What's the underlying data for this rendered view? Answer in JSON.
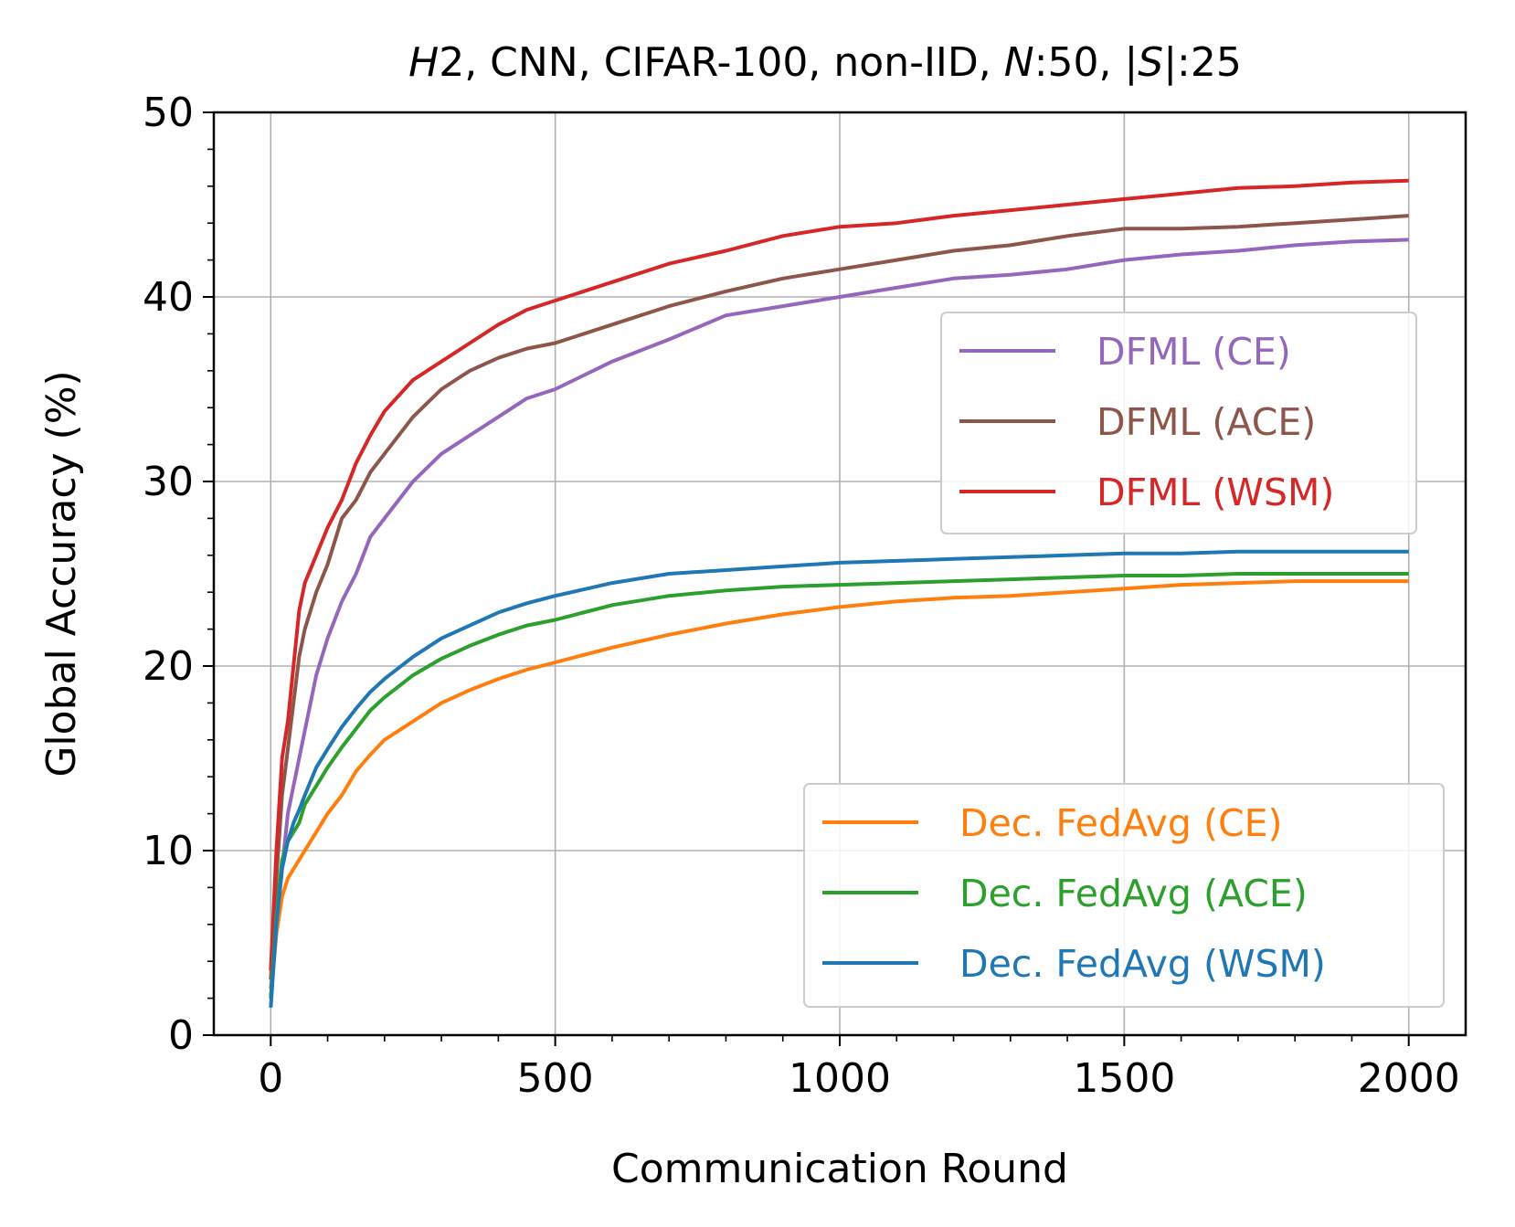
{
  "chart_data": {
    "type": "line",
    "title": {
      "prefix": "H",
      "parts": [
        {
          "text": "H",
          "italic": true
        },
        {
          "text": "2, CNN, CIFAR-100, non-IID, ",
          "italic": false
        },
        {
          "text": "N",
          "italic": true
        },
        {
          "text": ":50, |",
          "italic": false
        },
        {
          "text": "S",
          "italic": true
        },
        {
          "text": "|:25",
          "italic": false
        }
      ]
    },
    "xlabel": "Communication Round",
    "ylabel": "Global Accuracy (%)",
    "xlim": [
      -100,
      2100
    ],
    "ylim": [
      0,
      50
    ],
    "xticks": [
      0,
      500,
      1000,
      1500,
      2000
    ],
    "yticks": [
      0,
      10,
      20,
      30,
      40,
      50
    ],
    "grid": true,
    "x": [
      0,
      10,
      20,
      30,
      40,
      50,
      60,
      80,
      100,
      125,
      150,
      175,
      200,
      250,
      300,
      350,
      400,
      450,
      500,
      600,
      700,
      800,
      900,
      1000,
      1100,
      1200,
      1300,
      1400,
      1500,
      1600,
      1700,
      1800,
      1900,
      2000
    ],
    "series": [
      {
        "name": "DFML (CE)",
        "color": "#9467bd",
        "legend": "upper",
        "values": [
          2.5,
          6,
          9,
          12,
          13.5,
          15,
          16.5,
          19.5,
          21.5,
          23.5,
          25,
          27,
          28,
          30,
          31.5,
          32.5,
          33.5,
          34.5,
          35,
          36.5,
          37.7,
          39,
          39.5,
          40,
          40.5,
          41,
          41.2,
          41.5,
          42,
          42.3,
          42.5,
          42.8,
          43,
          43.1
        ]
      },
      {
        "name": "DFML (ACE)",
        "color": "#8c564b",
        "legend": "upper",
        "values": [
          3,
          8.5,
          13,
          15.5,
          18,
          20.5,
          22,
          24,
          25.5,
          28,
          29,
          30.5,
          31.5,
          33.5,
          35,
          36,
          36.7,
          37.2,
          37.5,
          38.5,
          39.5,
          40.3,
          41,
          41.5,
          42,
          42.5,
          42.8,
          43.3,
          43.7,
          43.7,
          43.8,
          44,
          44.2,
          44.4
        ]
      },
      {
        "name": "DFML (WSM)",
        "color": "#d62728",
        "legend": "upper",
        "values": [
          3.5,
          10,
          15,
          17,
          20,
          23,
          24.5,
          26,
          27.5,
          29,
          31,
          32.5,
          33.8,
          35.5,
          36.5,
          37.5,
          38.5,
          39.3,
          39.8,
          40.8,
          41.8,
          42.5,
          43.3,
          43.8,
          44,
          44.4,
          44.7,
          45,
          45.3,
          45.6,
          45.9,
          46,
          46.2,
          46.3
        ]
      },
      {
        "name": "Dec. FedAvg (CE)",
        "color": "#ff7f0e",
        "legend": "lower",
        "values": [
          2,
          5.5,
          7.5,
          8.5,
          9,
          9.5,
          10,
          11,
          12,
          13,
          14.3,
          15.2,
          16,
          17,
          18,
          18.7,
          19.3,
          19.8,
          20.2,
          21,
          21.7,
          22.3,
          22.8,
          23.2,
          23.5,
          23.7,
          23.8,
          24,
          24.2,
          24.4,
          24.5,
          24.6,
          24.6,
          24.6
        ]
      },
      {
        "name": "Dec. FedAvg (ACE)",
        "color": "#2ca02c",
        "legend": "lower",
        "values": [
          2,
          6.5,
          9.5,
          10.5,
          11,
          11.5,
          12.5,
          13.5,
          14.5,
          15.6,
          16.6,
          17.6,
          18.3,
          19.5,
          20.4,
          21.1,
          21.7,
          22.2,
          22.5,
          23.3,
          23.8,
          24.1,
          24.3,
          24.4,
          24.5,
          24.6,
          24.7,
          24.8,
          24.9,
          24.9,
          25,
          25,
          25,
          25
        ]
      },
      {
        "name": "Dec. FedAvg (WSM)",
        "color": "#1f77b4",
        "legend": "lower",
        "values": [
          1.5,
          6,
          9,
          10.5,
          11.5,
          12.2,
          13,
          14.5,
          15.5,
          16.7,
          17.7,
          18.6,
          19.3,
          20.5,
          21.5,
          22.2,
          22.9,
          23.4,
          23.8,
          24.5,
          25,
          25.2,
          25.4,
          25.6,
          25.7,
          25.8,
          25.9,
          26,
          26.1,
          26.1,
          26.2,
          26.2,
          26.2,
          26.2
        ]
      }
    ]
  }
}
